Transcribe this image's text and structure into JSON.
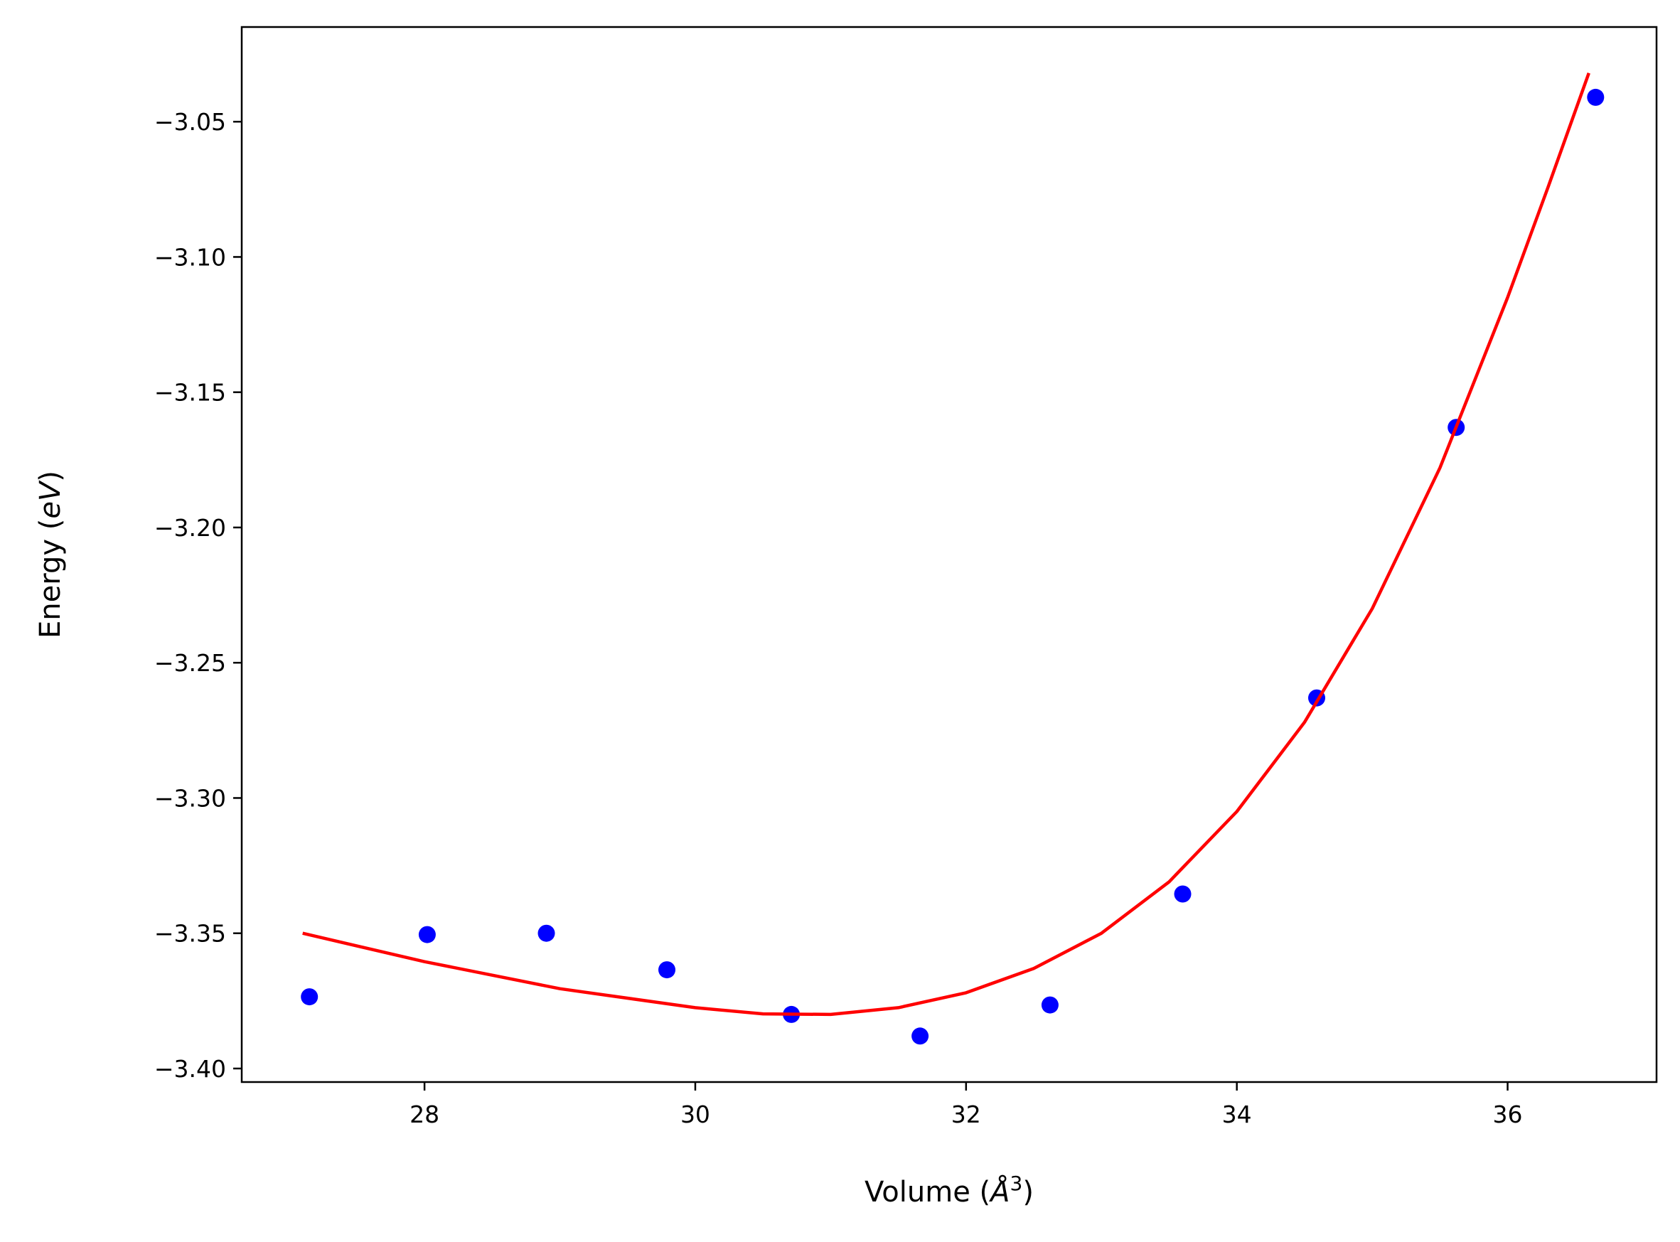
{
  "chart_data": {
    "type": "scatter",
    "xlabel": {
      "prefix": "Volume (",
      "symbol": "Å",
      "sup": "3",
      "suffix": ")"
    },
    "ylabel": {
      "prefix": "Energy (",
      "symbol": "eV",
      "suffix": ")"
    },
    "xlim": [
      26.65,
      37.1
    ],
    "ylim": [
      -3.405,
      -3.015
    ],
    "xticks": [
      {
        "value": 28,
        "label": "28"
      },
      {
        "value": 30,
        "label": "30"
      },
      {
        "value": 32,
        "label": "32"
      },
      {
        "value": 34,
        "label": "34"
      },
      {
        "value": 36,
        "label": "36"
      }
    ],
    "yticks": [
      {
        "value": -3.05,
        "label": "−3.05"
      },
      {
        "value": -3.1,
        "label": "−3.10"
      },
      {
        "value": -3.15,
        "label": "−3.15"
      },
      {
        "value": -3.2,
        "label": "−3.20"
      },
      {
        "value": -3.25,
        "label": "−3.25"
      },
      {
        "value": -3.3,
        "label": "−3.30"
      },
      {
        "value": -3.35,
        "label": "−3.35"
      },
      {
        "value": -3.4,
        "label": "−3.40"
      }
    ],
    "grid": false,
    "series": [
      {
        "kind": "scatter",
        "color": "#0000ff",
        "points": [
          [
            27.15,
            -3.3735
          ],
          [
            28.02,
            -3.3505
          ],
          [
            28.9,
            -3.35
          ],
          [
            29.79,
            -3.3635
          ],
          [
            30.71,
            -3.38
          ],
          [
            31.66,
            -3.388
          ],
          [
            32.62,
            -3.3765
          ],
          [
            33.6,
            -3.3355
          ],
          [
            34.59,
            -3.263
          ],
          [
            35.62,
            -3.163
          ],
          [
            36.65,
            -3.041
          ]
        ]
      },
      {
        "kind": "line",
        "color": "#ff0000",
        "points": [
          [
            27.1,
            -3.35
          ],
          [
            28.0,
            -3.3605
          ],
          [
            29.0,
            -3.3705
          ],
          [
            30.0,
            -3.3775
          ],
          [
            30.5,
            -3.3798
          ],
          [
            31.0,
            -3.38
          ],
          [
            31.5,
            -3.3775
          ],
          [
            32.0,
            -3.372
          ],
          [
            32.5,
            -3.363
          ],
          [
            33.0,
            -3.35
          ],
          [
            33.5,
            -3.331
          ],
          [
            34.0,
            -3.305
          ],
          [
            34.5,
            -3.272
          ],
          [
            35.0,
            -3.23
          ],
          [
            35.5,
            -3.178
          ],
          [
            36.0,
            -3.115
          ],
          [
            36.3,
            -3.074
          ],
          [
            36.6,
            -3.032
          ]
        ]
      }
    ]
  }
}
